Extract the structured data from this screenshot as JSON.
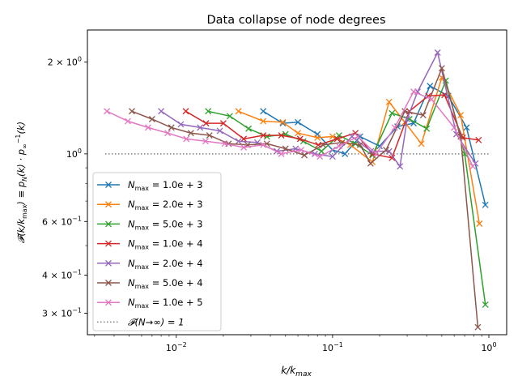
{
  "chart_data": {
    "type": "line",
    "title": "Data collapse of node degrees",
    "xlabel": "k/k_max",
    "ylabel": "F(k/k_max) ≡ p_N(k) · p_∞^{-1}(k)",
    "xscale": "log",
    "yscale": "log",
    "xlim": [
      0.0027,
      1.3
    ],
    "ylim": [
      0.255,
      2.55
    ],
    "grid": false,
    "legend": "lower-left",
    "x_ticks": [
      {
        "value": 0.01,
        "base": "10",
        "exp": "−2"
      },
      {
        "value": 0.1,
        "base": "10",
        "exp": "−1"
      },
      {
        "value": 1,
        "base": "10",
        "exp": "0"
      }
    ],
    "y_ticks": [
      {
        "value": 0.3,
        "mant": "3 × 10",
        "exp": "−1"
      },
      {
        "value": 0.4,
        "mant": "4 × 10",
        "exp": "−1"
      },
      {
        "value": 0.6,
        "mant": "6 × 10",
        "exp": "−1"
      },
      {
        "value": 1,
        "mant": "10",
        "exp": "0"
      },
      {
        "value": 2,
        "mant": "2 × 10",
        "exp": "0"
      }
    ],
    "series": [
      {
        "name": "N_max = 1.0e+3",
        "color": "#1f77b4",
        "marker": "x",
        "x": [
          0.036,
          0.048,
          0.06,
          0.08,
          0.1,
          0.12,
          0.15,
          0.2,
          0.26,
          0.33,
          0.42,
          0.55,
          0.72,
          0.95
        ],
        "y": [
          1.38,
          1.26,
          1.27,
          1.16,
          1.03,
          1.0,
          1.14,
          1.06,
          1.23,
          1.26,
          1.67,
          1.55,
          1.22,
          0.68
        ]
      },
      {
        "name": "N_max = 2.0e+3",
        "color": "#ff7f0e",
        "marker": "x",
        "x": [
          0.025,
          0.036,
          0.048,
          0.06,
          0.08,
          0.1,
          0.13,
          0.18,
          0.23,
          0.29,
          0.37,
          0.5,
          0.66,
          0.87
        ],
        "y": [
          1.38,
          1.28,
          1.27,
          1.17,
          1.13,
          1.14,
          1.07,
          0.94,
          1.48,
          1.27,
          1.08,
          1.78,
          1.34,
          0.59
        ]
      },
      {
        "name": "N_max = 5.0e+3",
        "color": "#2ca02c",
        "marker": "x",
        "x": [
          0.016,
          0.022,
          0.029,
          0.038,
          0.05,
          0.065,
          0.085,
          0.11,
          0.14,
          0.18,
          0.24,
          0.31,
          0.4,
          0.53,
          0.7,
          0.95
        ],
        "y": [
          1.38,
          1.33,
          1.21,
          1.14,
          1.16,
          1.1,
          1.02,
          1.15,
          1.08,
          0.99,
          1.36,
          1.3,
          1.21,
          1.74,
          1.0,
          0.32
        ]
      },
      {
        "name": "N_max = 1.0e+4",
        "color": "#d62728",
        "marker": "x",
        "x": [
          0.0115,
          0.0155,
          0.02,
          0.027,
          0.036,
          0.047,
          0.062,
          0.081,
          0.107,
          0.14,
          0.18,
          0.24,
          0.31,
          0.41,
          0.52,
          0.68,
          0.86
        ],
        "y": [
          1.38,
          1.26,
          1.26,
          1.12,
          1.15,
          1.15,
          1.12,
          1.07,
          1.12,
          1.17,
          1.0,
          0.97,
          1.38,
          1.55,
          1.56,
          1.13,
          1.11
        ]
      },
      {
        "name": "N_max = 2.0e+4",
        "color": "#9467bd",
        "marker": "x",
        "x": [
          0.008,
          0.0107,
          0.0142,
          0.019,
          0.025,
          0.033,
          0.044,
          0.058,
          0.077,
          0.1,
          0.133,
          0.176,
          0.23,
          0.27,
          0.3,
          0.35,
          0.47,
          0.62,
          0.82
        ],
        "y": [
          1.38,
          1.25,
          1.22,
          1.19,
          1.1,
          1.09,
          1.02,
          1.04,
          1.0,
          0.98,
          1.14,
          1.02,
          1.02,
          0.91,
          1.3,
          1.6,
          2.15,
          1.16,
          0.93
        ]
      },
      {
        "name": "N_max = 5.0e+4",
        "color": "#8c564b",
        "marker": "x",
        "x": [
          0.0052,
          0.007,
          0.0093,
          0.0124,
          0.0163,
          0.0216,
          0.0286,
          0.038,
          0.05,
          0.066,
          0.087,
          0.115,
          0.15,
          0.175,
          0.22,
          0.29,
          0.38,
          0.5,
          0.66,
          0.85
        ],
        "y": [
          1.38,
          1.3,
          1.22,
          1.17,
          1.15,
          1.08,
          1.07,
          1.08,
          1.04,
          0.99,
          1.07,
          1.09,
          1.07,
          0.93,
          1.03,
          1.38,
          1.34,
          1.91,
          1.14,
          0.27
        ]
      },
      {
        "name": "N_max = 1.0e+5",
        "color": "#e377c2",
        "marker": "x",
        "x": [
          0.0036,
          0.0049,
          0.0066,
          0.0088,
          0.0116,
          0.0154,
          0.0204,
          0.027,
          0.036,
          0.047,
          0.063,
          0.083,
          0.11,
          0.145,
          0.19,
          0.25,
          0.33,
          0.43,
          0.6,
          0.79
        ],
        "y": [
          1.38,
          1.28,
          1.22,
          1.17,
          1.12,
          1.1,
          1.08,
          1.05,
          1.07,
          1.0,
          1.03,
          0.98,
          1.06,
          1.14,
          1.0,
          1.22,
          1.6,
          1.51,
          1.22,
          0.91
        ]
      }
    ],
    "reference_line": {
      "name": "F(N→∞) = 1",
      "y": 1,
      "color": "#808080",
      "style": "dotted"
    },
    "legend_labels": [
      {
        "lhs": "N",
        "sub": "max",
        "rhs": " = 1.0e + 3"
      },
      {
        "lhs": "N",
        "sub": "max",
        "rhs": " = 2.0e + 3"
      },
      {
        "lhs": "N",
        "sub": "max",
        "rhs": " = 5.0e + 3"
      },
      {
        "lhs": "N",
        "sub": "max",
        "rhs": " = 1.0e + 4"
      },
      {
        "lhs": "N",
        "sub": "max",
        "rhs": " = 2.0e + 4"
      },
      {
        "lhs": "N",
        "sub": "max",
        "rhs": " = 5.0e + 4"
      },
      {
        "lhs": "N",
        "sub": "max",
        "rhs": " = 1.0e + 5"
      },
      {
        "lhs": "𝓕(N→∞) = 1",
        "sub": "",
        "rhs": ""
      }
    ]
  }
}
